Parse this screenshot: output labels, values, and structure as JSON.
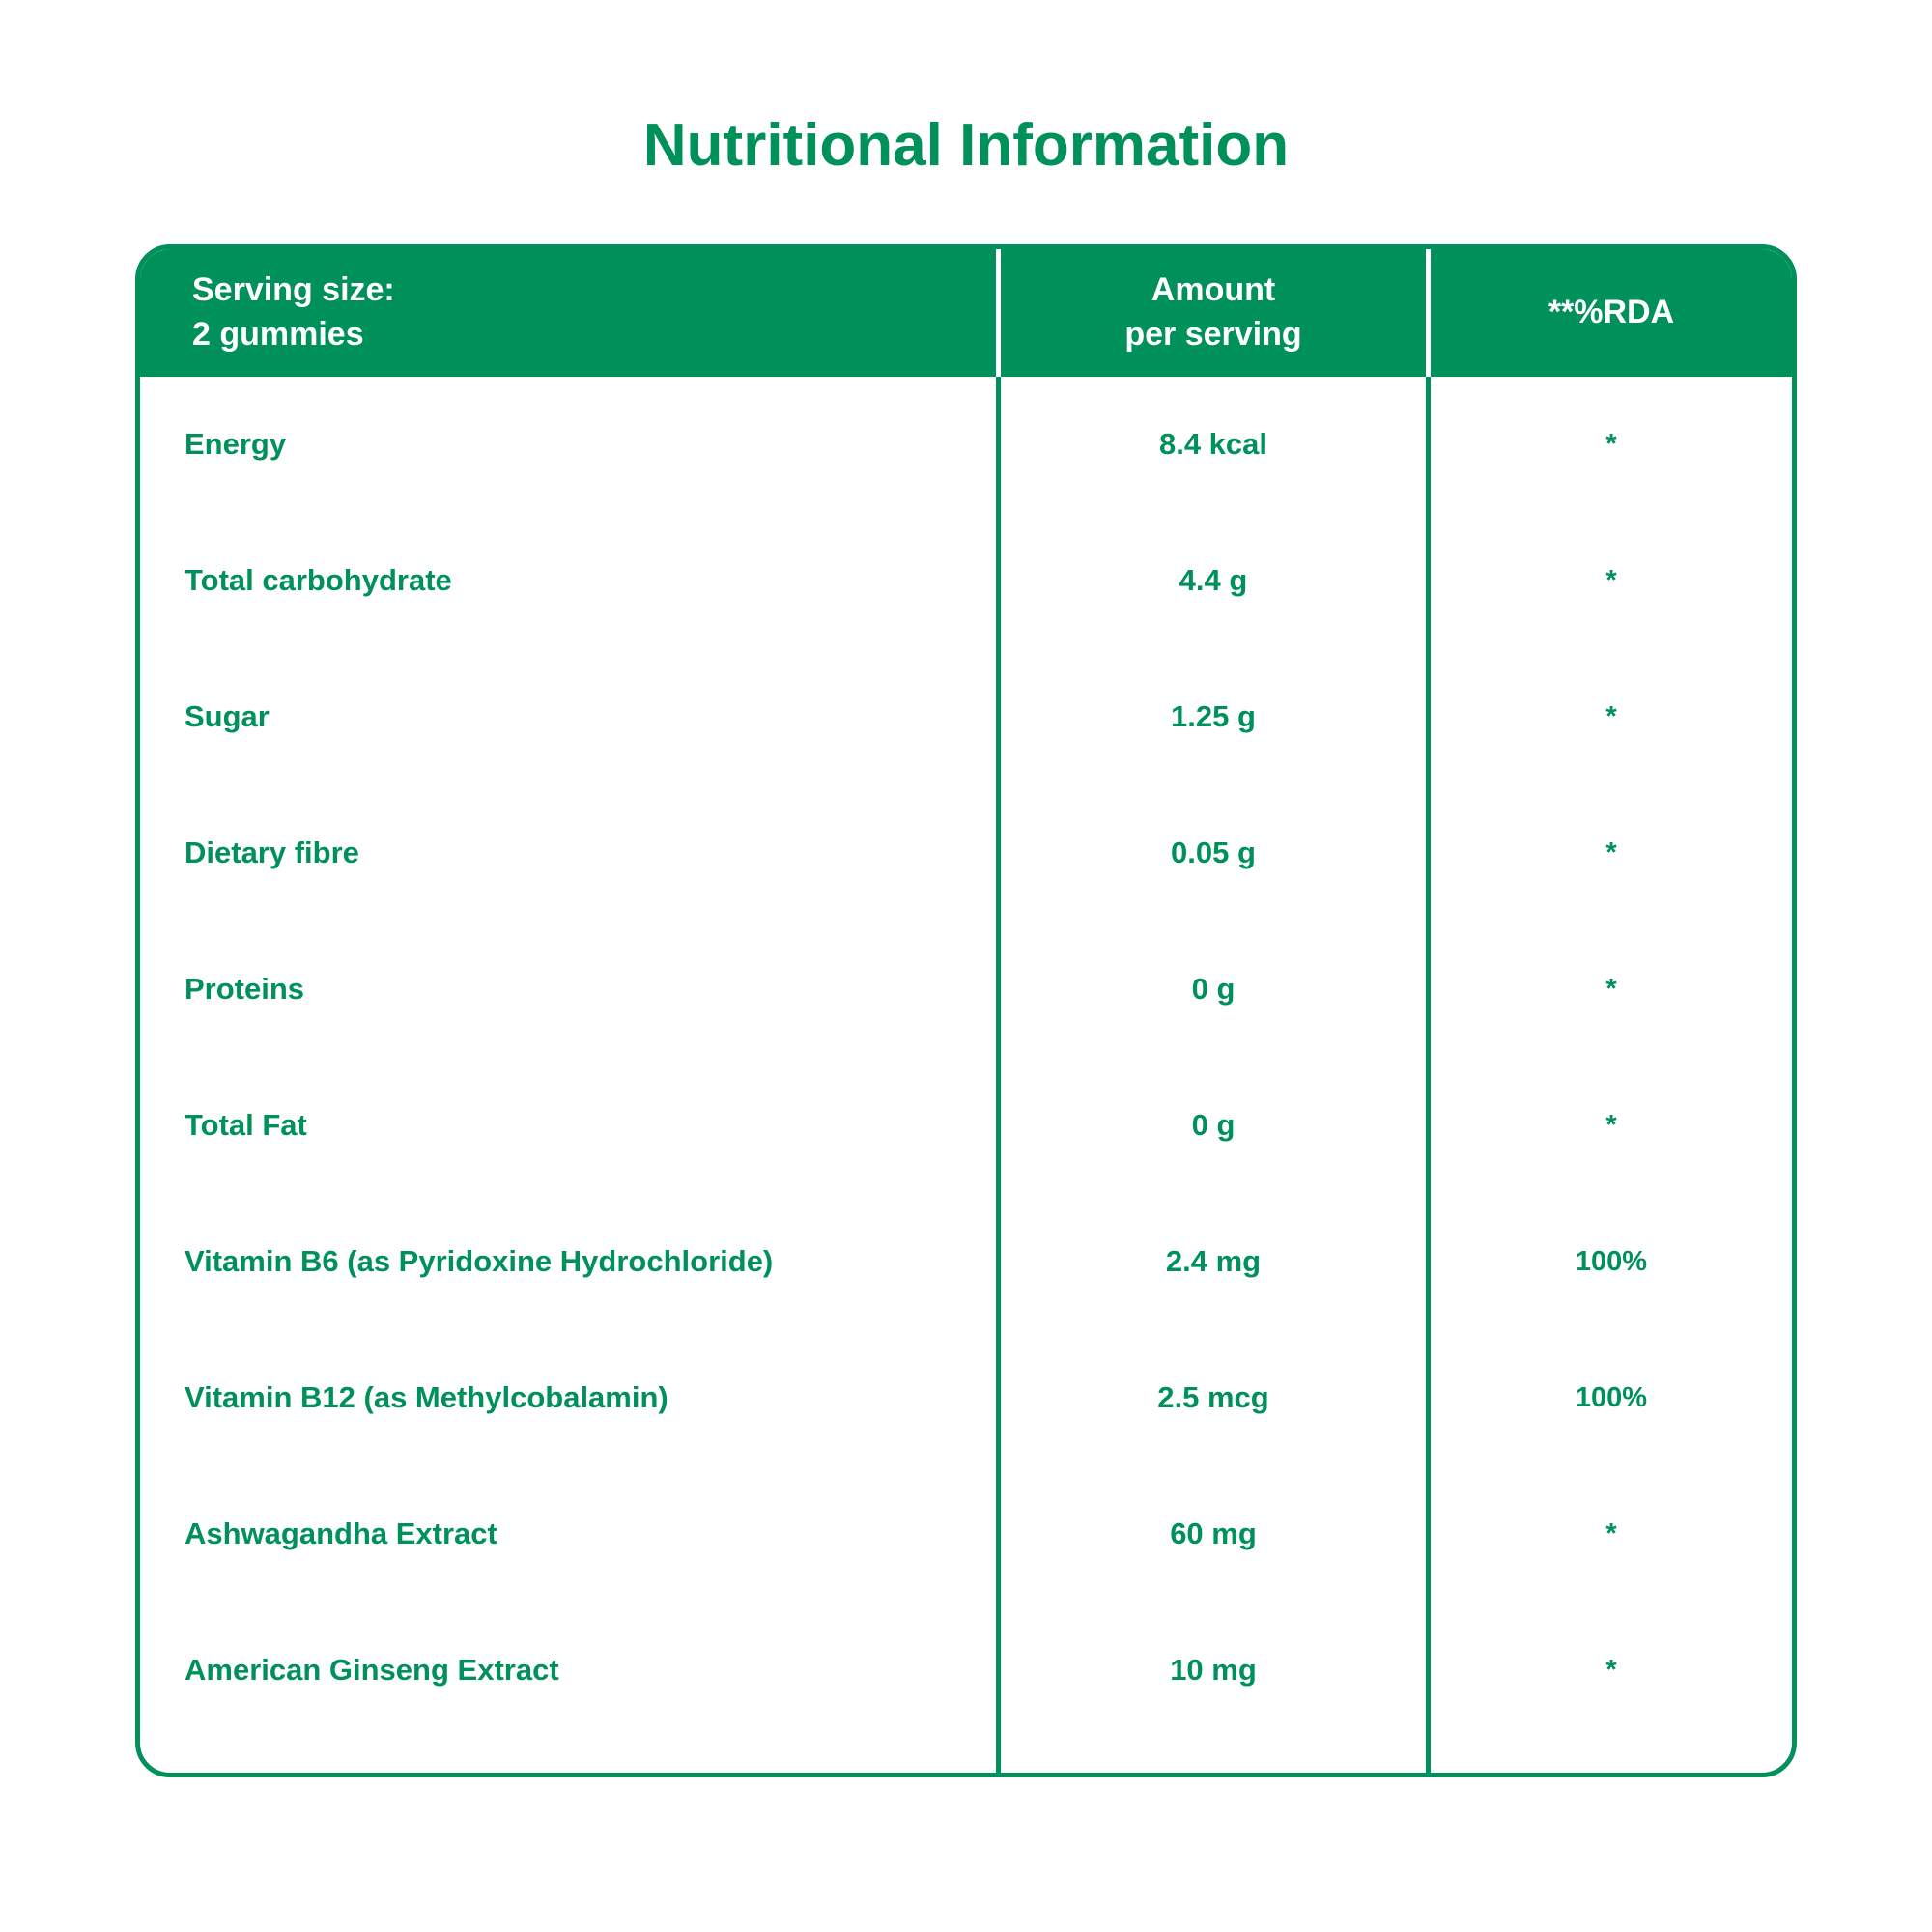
{
  "title": "Nutritional Information",
  "colors": {
    "brand_green": "#00915A",
    "header_text": "#FFFFFF",
    "background": "#FFFFFF"
  },
  "table": {
    "header": {
      "serving": "Serving size:\n2 gummies",
      "amount": "Amount\nper serving",
      "rda": "**%RDA"
    },
    "rows": [
      {
        "name": "Energy",
        "amount": "8.4 kcal",
        "rda": "*"
      },
      {
        "name": "Total carbohydrate",
        "amount": "4.4 g",
        "rda": "*"
      },
      {
        "name": "Sugar",
        "amount": "1.25 g",
        "rda": "*"
      },
      {
        "name": "Dietary fibre",
        "amount": "0.05 g",
        "rda": "*"
      },
      {
        "name": "Proteins",
        "amount": "0 g",
        "rda": "*"
      },
      {
        "name": "Total Fat",
        "amount": "0 g",
        "rda": "*"
      },
      {
        "name": "Vitamin B6 (as Pyridoxine Hydrochloride)",
        "amount": "2.4 mg",
        "rda": "100%"
      },
      {
        "name": "Vitamin B12 (as Methylcobalamin)",
        "amount": "2.5 mcg",
        "rda": "100%"
      },
      {
        "name": "Ashwagandha Extract",
        "amount": "60 mg",
        "rda": "*"
      },
      {
        "name": "American Ginseng Extract",
        "amount": "10 mg",
        "rda": "*"
      }
    ]
  }
}
